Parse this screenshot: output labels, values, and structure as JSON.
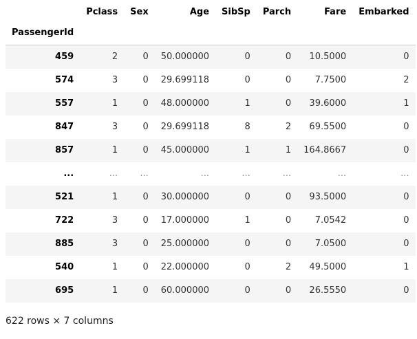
{
  "index_name": "PassengerId",
  "columns": [
    "Pclass",
    "Sex",
    "Age",
    "SibSp",
    "Parch",
    "Fare",
    "Embarked"
  ],
  "rows": [
    {
      "id": "459",
      "cells": [
        "2",
        "0",
        "50.000000",
        "0",
        "0",
        "10.5000",
        "0"
      ]
    },
    {
      "id": "574",
      "cells": [
        "3",
        "0",
        "29.699118",
        "0",
        "0",
        "7.7500",
        "2"
      ]
    },
    {
      "id": "557",
      "cells": [
        "1",
        "0",
        "48.000000",
        "1",
        "0",
        "39.6000",
        "1"
      ]
    },
    {
      "id": "847",
      "cells": [
        "3",
        "0",
        "29.699118",
        "8",
        "2",
        "69.5500",
        "0"
      ]
    },
    {
      "id": "857",
      "cells": [
        "1",
        "0",
        "45.000000",
        "1",
        "1",
        "164.8667",
        "0"
      ]
    },
    {
      "id": "...",
      "cells": [
        "...",
        "...",
        "...",
        "...",
        "...",
        "...",
        "..."
      ]
    },
    {
      "id": "521",
      "cells": [
        "1",
        "0",
        "30.000000",
        "0",
        "0",
        "93.5000",
        "0"
      ]
    },
    {
      "id": "722",
      "cells": [
        "3",
        "0",
        "17.000000",
        "1",
        "0",
        "7.0542",
        "0"
      ]
    },
    {
      "id": "885",
      "cells": [
        "3",
        "0",
        "25.000000",
        "0",
        "0",
        "7.0500",
        "0"
      ]
    },
    {
      "id": "540",
      "cells": [
        "1",
        "0",
        "22.000000",
        "0",
        "2",
        "49.5000",
        "1"
      ]
    },
    {
      "id": "695",
      "cells": [
        "1",
        "0",
        "60.000000",
        "0",
        "0",
        "26.5550",
        "0"
      ]
    }
  ],
  "shape_text": "622 rows × 7 columns"
}
